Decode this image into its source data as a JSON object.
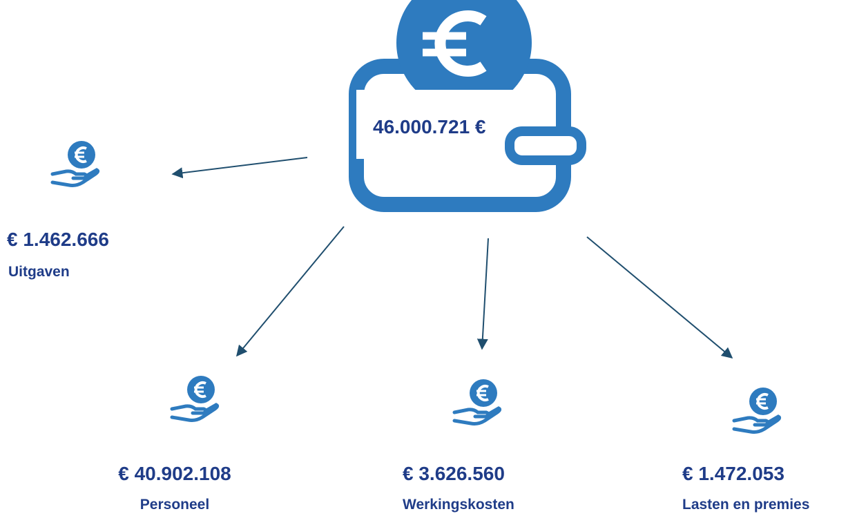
{
  "total": "46.000.721 €",
  "items": [
    {
      "amount": "€ 1.462.666",
      "label": "Uitgaven"
    },
    {
      "amount": "€ 40.902.108",
      "label": "Personeel"
    },
    {
      "amount": "€ 3.626.560",
      "label": "Werkingskosten"
    },
    {
      "amount": "€ 1.472.053",
      "label": "Lasten en premies"
    }
  ]
}
